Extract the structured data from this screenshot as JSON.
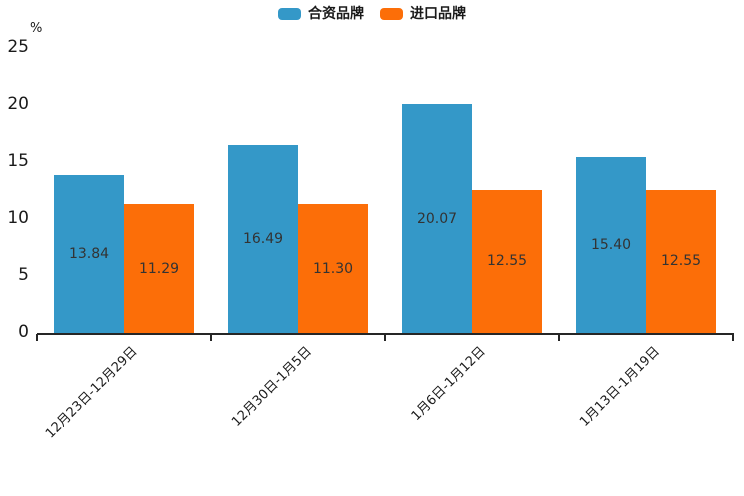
{
  "chart_data": {
    "type": "bar",
    "title": "",
    "categories": [
      "12月23日-12月29日",
      "12月30日-1月5日",
      "1月6日-1月12日",
      "1月13日-1月19日"
    ],
    "series": [
      {
        "name": "合资品牌",
        "color": "#3498c8",
        "values": [
          13.84,
          16.49,
          20.07,
          15.4
        ],
        "labels": [
          "13.84",
          "16.49",
          "20.07",
          "15.40"
        ]
      },
      {
        "name": "进口品牌",
        "color": "#fc6e08",
        "values": [
          11.29,
          11.3,
          12.55,
          12.55
        ],
        "labels": [
          "11.29",
          "11.30",
          "12.55",
          "12.55"
        ]
      }
    ],
    "xlabel": "",
    "ylabel": "%",
    "ylim": [
      0,
      25
    ],
    "yticks": [
      0,
      5,
      10,
      15,
      20,
      25
    ],
    "grid": false,
    "legend_position": "top-center",
    "bar_label_position": "center-inside",
    "text_color": "#1a1a1a",
    "bar_label_color": "#333333",
    "axis_color": "#262626"
  }
}
